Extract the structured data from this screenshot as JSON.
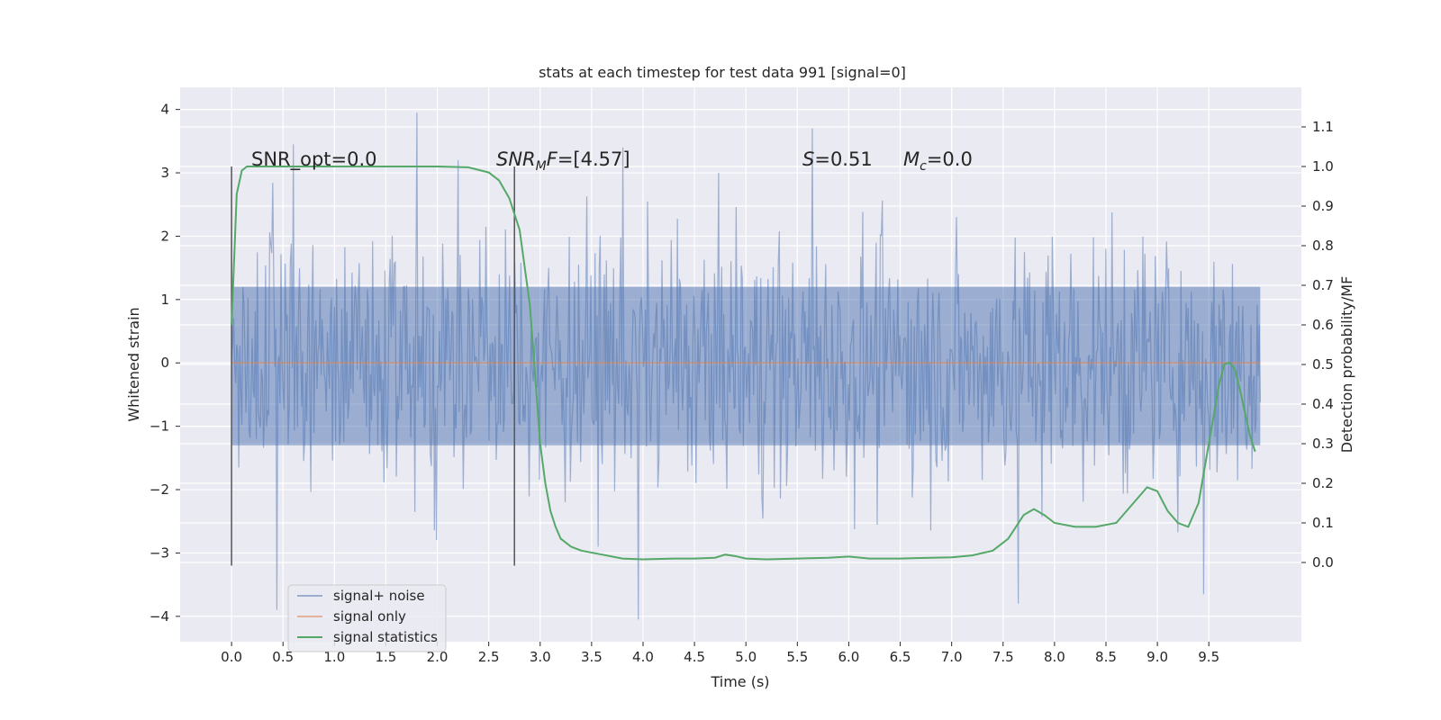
{
  "chart_data": {
    "type": "line",
    "title": "stats at each timestep for test data 991 [signal=0]",
    "xlabel": "Time (s)",
    "ylabel": "Whitened strain",
    "ylabel_right": "Detection probability/MF",
    "xlim": [
      -0.5,
      10.4
    ],
    "ylim": [
      -4.4,
      4.35
    ],
    "ylim_right": [
      -0.2,
      1.2
    ],
    "x_ticks": [
      "0.0",
      "0.5",
      "1.0",
      "1.5",
      "2.0",
      "2.5",
      "3.0",
      "3.5",
      "4.0",
      "4.5",
      "5.0",
      "5.5",
      "6.0",
      "6.5",
      "7.0",
      "7.5",
      "8.0",
      "8.5",
      "9.0",
      "9.5"
    ],
    "y_ticks_left": [
      "4",
      "3",
      "2",
      "1",
      "0",
      "−1",
      "−2",
      "−3",
      "−4"
    ],
    "y_ticks_right": [
      "1.1",
      "1.0",
      "0.9",
      "0.8",
      "0.7",
      "0.6",
      "0.5",
      "0.4",
      "0.3",
      "0.2",
      "0.1",
      "0.0"
    ],
    "grid": true,
    "legend_position": "bottom-left",
    "legend": [
      "signal+ noise",
      "signal only",
      "signal statistics"
    ],
    "colors": {
      "signal_noise": "#4c72b0",
      "signal_only": "#dd8452",
      "signal_statistics": "#55a868",
      "background": "#eaeaf2",
      "vline": "#555555"
    },
    "annotations": {
      "snr_opt": "SNR_opt=0.0",
      "snr_mf_label": "SNR",
      "snr_mf_sub": "M",
      "snr_mf_label2": "F",
      "snr_mf_value": "=[4.57]",
      "s_label": "S",
      "s_value": "=0.51",
      "mc_label": "M",
      "mc_sub": "c",
      "mc_value": "=0.0"
    },
    "vlines": [
      0.0,
      2.75
    ],
    "vline_range": [
      -3.2,
      3.1
    ],
    "signal_noise": {
      "name": "signal+ noise",
      "x_range": [
        0.0,
        10.0
      ],
      "n_points": 1000,
      "seed": 991,
      "dense_envelope": [
        -1.3,
        1.2
      ],
      "peaks": [
        [
          0.44,
          -3.9
        ],
        [
          1.8,
          3.95
        ],
        [
          3.95,
          -4.05
        ],
        [
          5.65,
          3.7
        ],
        [
          7.65,
          -3.8
        ],
        [
          9.45,
          -3.65
        ],
        [
          2.2,
          3.2
        ],
        [
          0.6,
          3.45
        ],
        [
          3.8,
          3.4
        ]
      ]
    },
    "signal_only": {
      "name": "signal only",
      "x": [
        0.0,
        10.0
      ],
      "y": [
        0.0,
        0.0
      ]
    },
    "signal_statistics": {
      "name": "signal statistics",
      "x": [
        0.0,
        0.05,
        0.1,
        0.15,
        0.2,
        0.3,
        0.5,
        1.0,
        1.5,
        2.0,
        2.3,
        2.5,
        2.6,
        2.7,
        2.8,
        2.9,
        3.0,
        3.05,
        3.1,
        3.15,
        3.2,
        3.3,
        3.4,
        3.6,
        3.8,
        4.0,
        4.3,
        4.5,
        4.7,
        4.8,
        4.9,
        5.0,
        5.2,
        5.5,
        5.8,
        6.0,
        6.2,
        6.5,
        6.8,
        7.0,
        7.2,
        7.4,
        7.55,
        7.7,
        7.8,
        7.9,
        8.0,
        8.2,
        8.4,
        8.6,
        8.8,
        8.9,
        9.0,
        9.1,
        9.2,
        9.3,
        9.4,
        9.5,
        9.6,
        9.65,
        9.7,
        9.75,
        9.8,
        9.9,
        9.95
      ],
      "y": [
        0.6,
        0.93,
        0.99,
        1.0,
        1.0,
        1.0,
        1.0,
        1.0,
        1.0,
        1.0,
        0.998,
        0.985,
        0.965,
        0.92,
        0.84,
        0.65,
        0.3,
        0.2,
        0.13,
        0.09,
        0.06,
        0.04,
        0.03,
        0.02,
        0.01,
        0.008,
        0.01,
        0.01,
        0.012,
        0.02,
        0.016,
        0.01,
        0.008,
        0.01,
        0.012,
        0.015,
        0.01,
        0.01,
        0.012,
        0.013,
        0.018,
        0.03,
        0.06,
        0.12,
        0.135,
        0.12,
        0.1,
        0.09,
        0.09,
        0.1,
        0.16,
        0.19,
        0.18,
        0.13,
        0.1,
        0.09,
        0.15,
        0.3,
        0.45,
        0.5,
        0.505,
        0.49,
        0.44,
        0.32,
        0.28
      ]
    }
  }
}
